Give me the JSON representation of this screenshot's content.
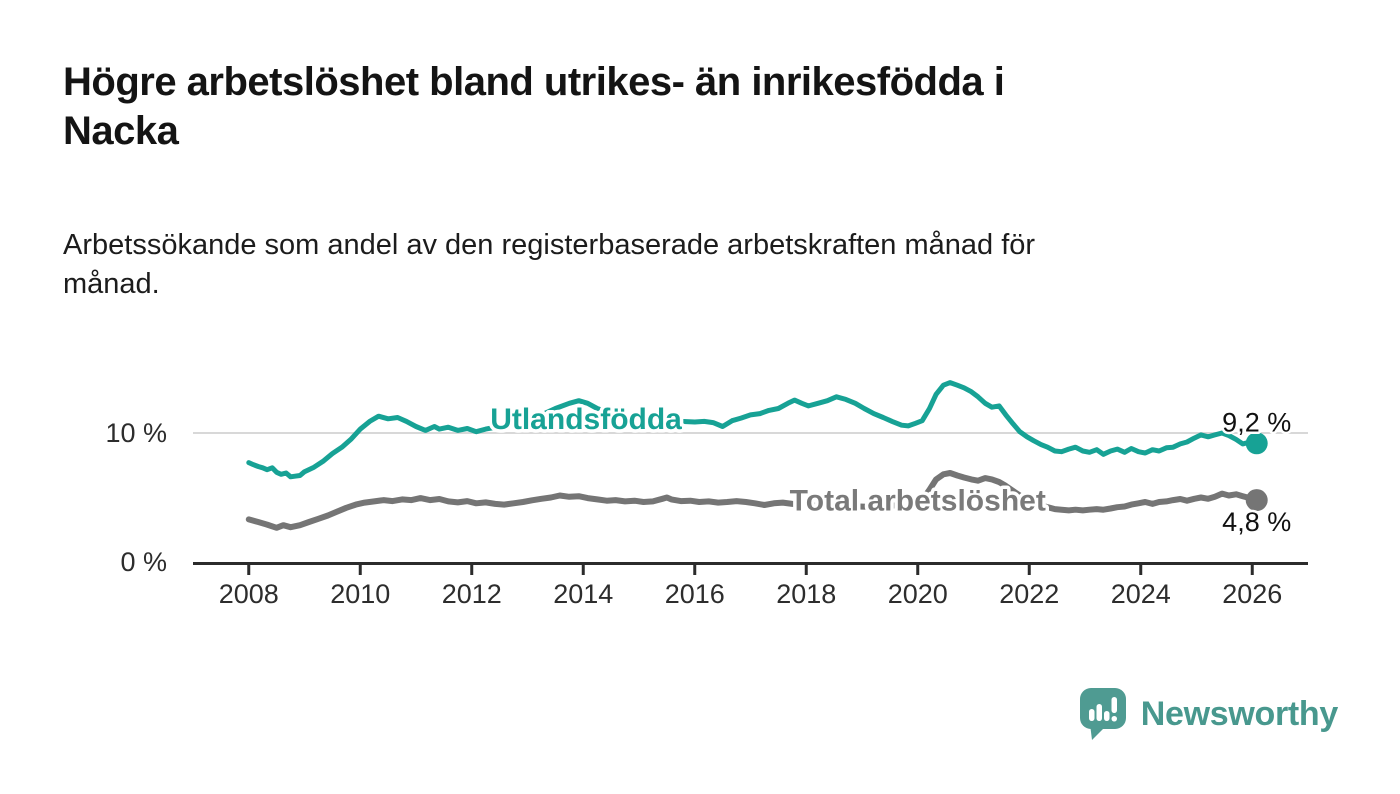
{
  "header": {
    "title_lines": [
      "Högre arbetslöshet bland utrikes- än inrikesfödda i",
      "Nacka"
    ],
    "subtitle_lines": [
      "Arbetssökande som andel av den registerbaserade arbetskraften månad för",
      "månad."
    ]
  },
  "chart_data": {
    "type": "line",
    "title": "Högre arbetslöshet bland utrikes- än inrikesfödda i Nacka",
    "subtitle": "Arbetssökande som andel av den registerbaserade arbetskraften månad för månad.",
    "unit": "%",
    "xlim": [
      2007,
      2027
    ],
    "ylim": [
      0,
      15.5
    ],
    "grid_y": [
      10
    ],
    "grid_color": "#d8d8d8",
    "axis_color": "#2b2b2b",
    "xticks": [
      2008,
      2010,
      2012,
      2014,
      2016,
      2018,
      2020,
      2022,
      2024,
      2026
    ],
    "yticks": [
      {
        "value": 0,
        "label": "0 %"
      },
      {
        "value": 10,
        "label": "10 %"
      }
    ],
    "series": [
      {
        "name": "Utlandsfödda",
        "color": "#17a295",
        "label_color": "#17a295",
        "end_label": "9,2 %",
        "end_value": 9.2,
        "label_pos": {
          "x": 2014.05,
          "y": 11.1
        },
        "points": [
          [
            2008.0,
            7.7
          ],
          [
            2008.08,
            7.55
          ],
          [
            2008.17,
            7.4
          ],
          [
            2008.25,
            7.3
          ],
          [
            2008.33,
            7.15
          ],
          [
            2008.42,
            7.3
          ],
          [
            2008.5,
            6.95
          ],
          [
            2008.58,
            6.8
          ],
          [
            2008.67,
            6.9
          ],
          [
            2008.75,
            6.6
          ],
          [
            2008.83,
            6.65
          ],
          [
            2008.92,
            6.7
          ],
          [
            2009.0,
            7.0
          ],
          [
            2009.17,
            7.35
          ],
          [
            2009.33,
            7.8
          ],
          [
            2009.5,
            8.4
          ],
          [
            2009.67,
            8.9
          ],
          [
            2009.83,
            9.5
          ],
          [
            2010.0,
            10.3
          ],
          [
            2010.17,
            10.9
          ],
          [
            2010.33,
            11.3
          ],
          [
            2010.5,
            11.1
          ],
          [
            2010.67,
            11.2
          ],
          [
            2010.83,
            10.9
          ],
          [
            2011.0,
            10.5
          ],
          [
            2011.17,
            10.2
          ],
          [
            2011.33,
            10.5
          ],
          [
            2011.42,
            10.3
          ],
          [
            2011.58,
            10.45
          ],
          [
            2011.75,
            10.2
          ],
          [
            2011.92,
            10.35
          ],
          [
            2012.08,
            10.1
          ],
          [
            2012.25,
            10.3
          ],
          [
            2012.5,
            10.5
          ],
          [
            2012.75,
            10.7
          ],
          [
            2013.0,
            11.0
          ],
          [
            2013.25,
            11.4
          ],
          [
            2013.5,
            11.9
          ],
          [
            2013.75,
            12.3
          ],
          [
            2013.92,
            12.5
          ],
          [
            2014.08,
            12.3
          ],
          [
            2014.25,
            11.9
          ],
          [
            2014.5,
            11.5
          ],
          [
            2014.75,
            11.2
          ],
          [
            2015.0,
            11.0
          ],
          [
            2015.25,
            10.9
          ],
          [
            2015.5,
            10.85
          ],
          [
            2015.75,
            10.9
          ],
          [
            2016.0,
            10.85
          ],
          [
            2016.17,
            10.9
          ],
          [
            2016.33,
            10.8
          ],
          [
            2016.5,
            10.5
          ],
          [
            2016.67,
            10.95
          ],
          [
            2016.83,
            11.15
          ],
          [
            2017.0,
            11.4
          ],
          [
            2017.17,
            11.5
          ],
          [
            2017.33,
            11.75
          ],
          [
            2017.5,
            11.9
          ],
          [
            2017.67,
            12.3
          ],
          [
            2017.79,
            12.55
          ],
          [
            2017.92,
            12.3
          ],
          [
            2018.04,
            12.1
          ],
          [
            2018.21,
            12.3
          ],
          [
            2018.38,
            12.5
          ],
          [
            2018.54,
            12.8
          ],
          [
            2018.71,
            12.6
          ],
          [
            2018.88,
            12.3
          ],
          [
            2019.04,
            11.9
          ],
          [
            2019.21,
            11.5
          ],
          [
            2019.38,
            11.2
          ],
          [
            2019.54,
            10.9
          ],
          [
            2019.71,
            10.6
          ],
          [
            2019.83,
            10.55
          ],
          [
            2019.96,
            10.75
          ],
          [
            2020.08,
            10.95
          ],
          [
            2020.21,
            11.9
          ],
          [
            2020.33,
            13.0
          ],
          [
            2020.46,
            13.7
          ],
          [
            2020.58,
            13.9
          ],
          [
            2020.71,
            13.7
          ],
          [
            2020.83,
            13.5
          ],
          [
            2020.96,
            13.2
          ],
          [
            2021.08,
            12.8
          ],
          [
            2021.21,
            12.3
          ],
          [
            2021.33,
            12.0
          ],
          [
            2021.46,
            12.1
          ],
          [
            2021.58,
            11.4
          ],
          [
            2021.71,
            10.7
          ],
          [
            2021.83,
            10.1
          ],
          [
            2021.96,
            9.7
          ],
          [
            2022.08,
            9.4
          ],
          [
            2022.21,
            9.1
          ],
          [
            2022.33,
            8.9
          ],
          [
            2022.46,
            8.6
          ],
          [
            2022.58,
            8.55
          ],
          [
            2022.71,
            8.75
          ],
          [
            2022.83,
            8.9
          ],
          [
            2022.96,
            8.6
          ],
          [
            2023.08,
            8.5
          ],
          [
            2023.21,
            8.7
          ],
          [
            2023.33,
            8.35
          ],
          [
            2023.46,
            8.6
          ],
          [
            2023.58,
            8.75
          ],
          [
            2023.71,
            8.5
          ],
          [
            2023.83,
            8.8
          ],
          [
            2023.96,
            8.55
          ],
          [
            2024.08,
            8.45
          ],
          [
            2024.21,
            8.7
          ],
          [
            2024.33,
            8.6
          ],
          [
            2024.46,
            8.85
          ],
          [
            2024.58,
            8.9
          ],
          [
            2024.71,
            9.15
          ],
          [
            2024.83,
            9.3
          ],
          [
            2024.96,
            9.6
          ],
          [
            2025.08,
            9.85
          ],
          [
            2025.21,
            9.7
          ],
          [
            2025.33,
            9.85
          ],
          [
            2025.46,
            10.0
          ],
          [
            2025.58,
            9.8
          ],
          [
            2025.71,
            9.5
          ],
          [
            2025.83,
            9.15
          ],
          [
            2025.96,
            9.3
          ],
          [
            2026.08,
            9.2
          ]
        ]
      },
      {
        "name": "Total arbetslöshet",
        "color": "#757575",
        "label_color": "#7a7a7a",
        "end_label": "4,8 %",
        "end_value": 4.8,
        "label_pos": {
          "x": 2020.0,
          "y": 4.75
        },
        "points": [
          [
            2008.0,
            3.3
          ],
          [
            2008.17,
            3.1
          ],
          [
            2008.33,
            2.9
          ],
          [
            2008.5,
            2.65
          ],
          [
            2008.62,
            2.85
          ],
          [
            2008.75,
            2.7
          ],
          [
            2008.92,
            2.85
          ],
          [
            2009.08,
            3.1
          ],
          [
            2009.25,
            3.35
          ],
          [
            2009.42,
            3.6
          ],
          [
            2009.58,
            3.9
          ],
          [
            2009.75,
            4.2
          ],
          [
            2009.92,
            4.45
          ],
          [
            2010.08,
            4.6
          ],
          [
            2010.25,
            4.7
          ],
          [
            2010.42,
            4.8
          ],
          [
            2010.58,
            4.72
          ],
          [
            2010.75,
            4.85
          ],
          [
            2010.92,
            4.8
          ],
          [
            2011.08,
            4.95
          ],
          [
            2011.25,
            4.8
          ],
          [
            2011.42,
            4.88
          ],
          [
            2011.58,
            4.7
          ],
          [
            2011.75,
            4.62
          ],
          [
            2011.92,
            4.72
          ],
          [
            2012.08,
            4.55
          ],
          [
            2012.25,
            4.62
          ],
          [
            2012.42,
            4.5
          ],
          [
            2012.58,
            4.45
          ],
          [
            2012.75,
            4.55
          ],
          [
            2012.92,
            4.65
          ],
          [
            2013.08,
            4.78
          ],
          [
            2013.25,
            4.9
          ],
          [
            2013.42,
            5.0
          ],
          [
            2013.58,
            5.15
          ],
          [
            2013.75,
            5.05
          ],
          [
            2013.92,
            5.1
          ],
          [
            2014.08,
            4.95
          ],
          [
            2014.25,
            4.85
          ],
          [
            2014.42,
            4.75
          ],
          [
            2014.58,
            4.8
          ],
          [
            2014.75,
            4.7
          ],
          [
            2014.92,
            4.75
          ],
          [
            2015.08,
            4.65
          ],
          [
            2015.25,
            4.7
          ],
          [
            2015.42,
            4.9
          ],
          [
            2015.5,
            5.0
          ],
          [
            2015.58,
            4.85
          ],
          [
            2015.75,
            4.72
          ],
          [
            2015.92,
            4.75
          ],
          [
            2016.08,
            4.65
          ],
          [
            2016.25,
            4.7
          ],
          [
            2016.42,
            4.6
          ],
          [
            2016.58,
            4.65
          ],
          [
            2016.75,
            4.72
          ],
          [
            2016.92,
            4.65
          ],
          [
            2017.08,
            4.55
          ],
          [
            2017.25,
            4.42
          ],
          [
            2017.42,
            4.55
          ],
          [
            2017.58,
            4.6
          ],
          [
            2017.75,
            4.5
          ],
          [
            2017.92,
            4.45
          ],
          [
            2018.08,
            4.4
          ],
          [
            2018.33,
            4.35
          ],
          [
            2018.58,
            4.4
          ],
          [
            2018.83,
            4.32
          ],
          [
            2019.08,
            4.28
          ],
          [
            2019.33,
            4.32
          ],
          [
            2019.58,
            4.38
          ],
          [
            2019.83,
            4.45
          ],
          [
            2019.96,
            4.55
          ],
          [
            2020.08,
            4.8
          ],
          [
            2020.21,
            5.6
          ],
          [
            2020.33,
            6.4
          ],
          [
            2020.46,
            6.8
          ],
          [
            2020.58,
            6.9
          ],
          [
            2020.71,
            6.7
          ],
          [
            2020.83,
            6.55
          ],
          [
            2020.96,
            6.4
          ],
          [
            2021.08,
            6.3
          ],
          [
            2021.21,
            6.5
          ],
          [
            2021.33,
            6.4
          ],
          [
            2021.46,
            6.2
          ],
          [
            2021.58,
            5.9
          ],
          [
            2021.71,
            5.5
          ],
          [
            2021.83,
            5.15
          ],
          [
            2021.96,
            4.85
          ],
          [
            2022.08,
            4.6
          ],
          [
            2022.21,
            4.4
          ],
          [
            2022.33,
            4.25
          ],
          [
            2022.46,
            4.1
          ],
          [
            2022.58,
            4.05
          ],
          [
            2022.71,
            4.0
          ],
          [
            2022.83,
            4.05
          ],
          [
            2022.96,
            4.0
          ],
          [
            2023.08,
            4.05
          ],
          [
            2023.21,
            4.1
          ],
          [
            2023.33,
            4.05
          ],
          [
            2023.46,
            4.15
          ],
          [
            2023.58,
            4.25
          ],
          [
            2023.71,
            4.3
          ],
          [
            2023.83,
            4.45
          ],
          [
            2023.96,
            4.55
          ],
          [
            2024.08,
            4.65
          ],
          [
            2024.21,
            4.5
          ],
          [
            2024.33,
            4.65
          ],
          [
            2024.46,
            4.7
          ],
          [
            2024.58,
            4.8
          ],
          [
            2024.71,
            4.88
          ],
          [
            2024.83,
            4.75
          ],
          [
            2024.96,
            4.9
          ],
          [
            2025.08,
            5.0
          ],
          [
            2025.21,
            4.9
          ],
          [
            2025.33,
            5.05
          ],
          [
            2025.46,
            5.3
          ],
          [
            2025.58,
            5.15
          ],
          [
            2025.71,
            5.25
          ],
          [
            2025.83,
            5.1
          ],
          [
            2025.96,
            4.95
          ],
          [
            2026.08,
            4.8
          ]
        ]
      }
    ]
  },
  "footer": {
    "brand": "Newsworthy",
    "brand_color": "#48988e"
  }
}
